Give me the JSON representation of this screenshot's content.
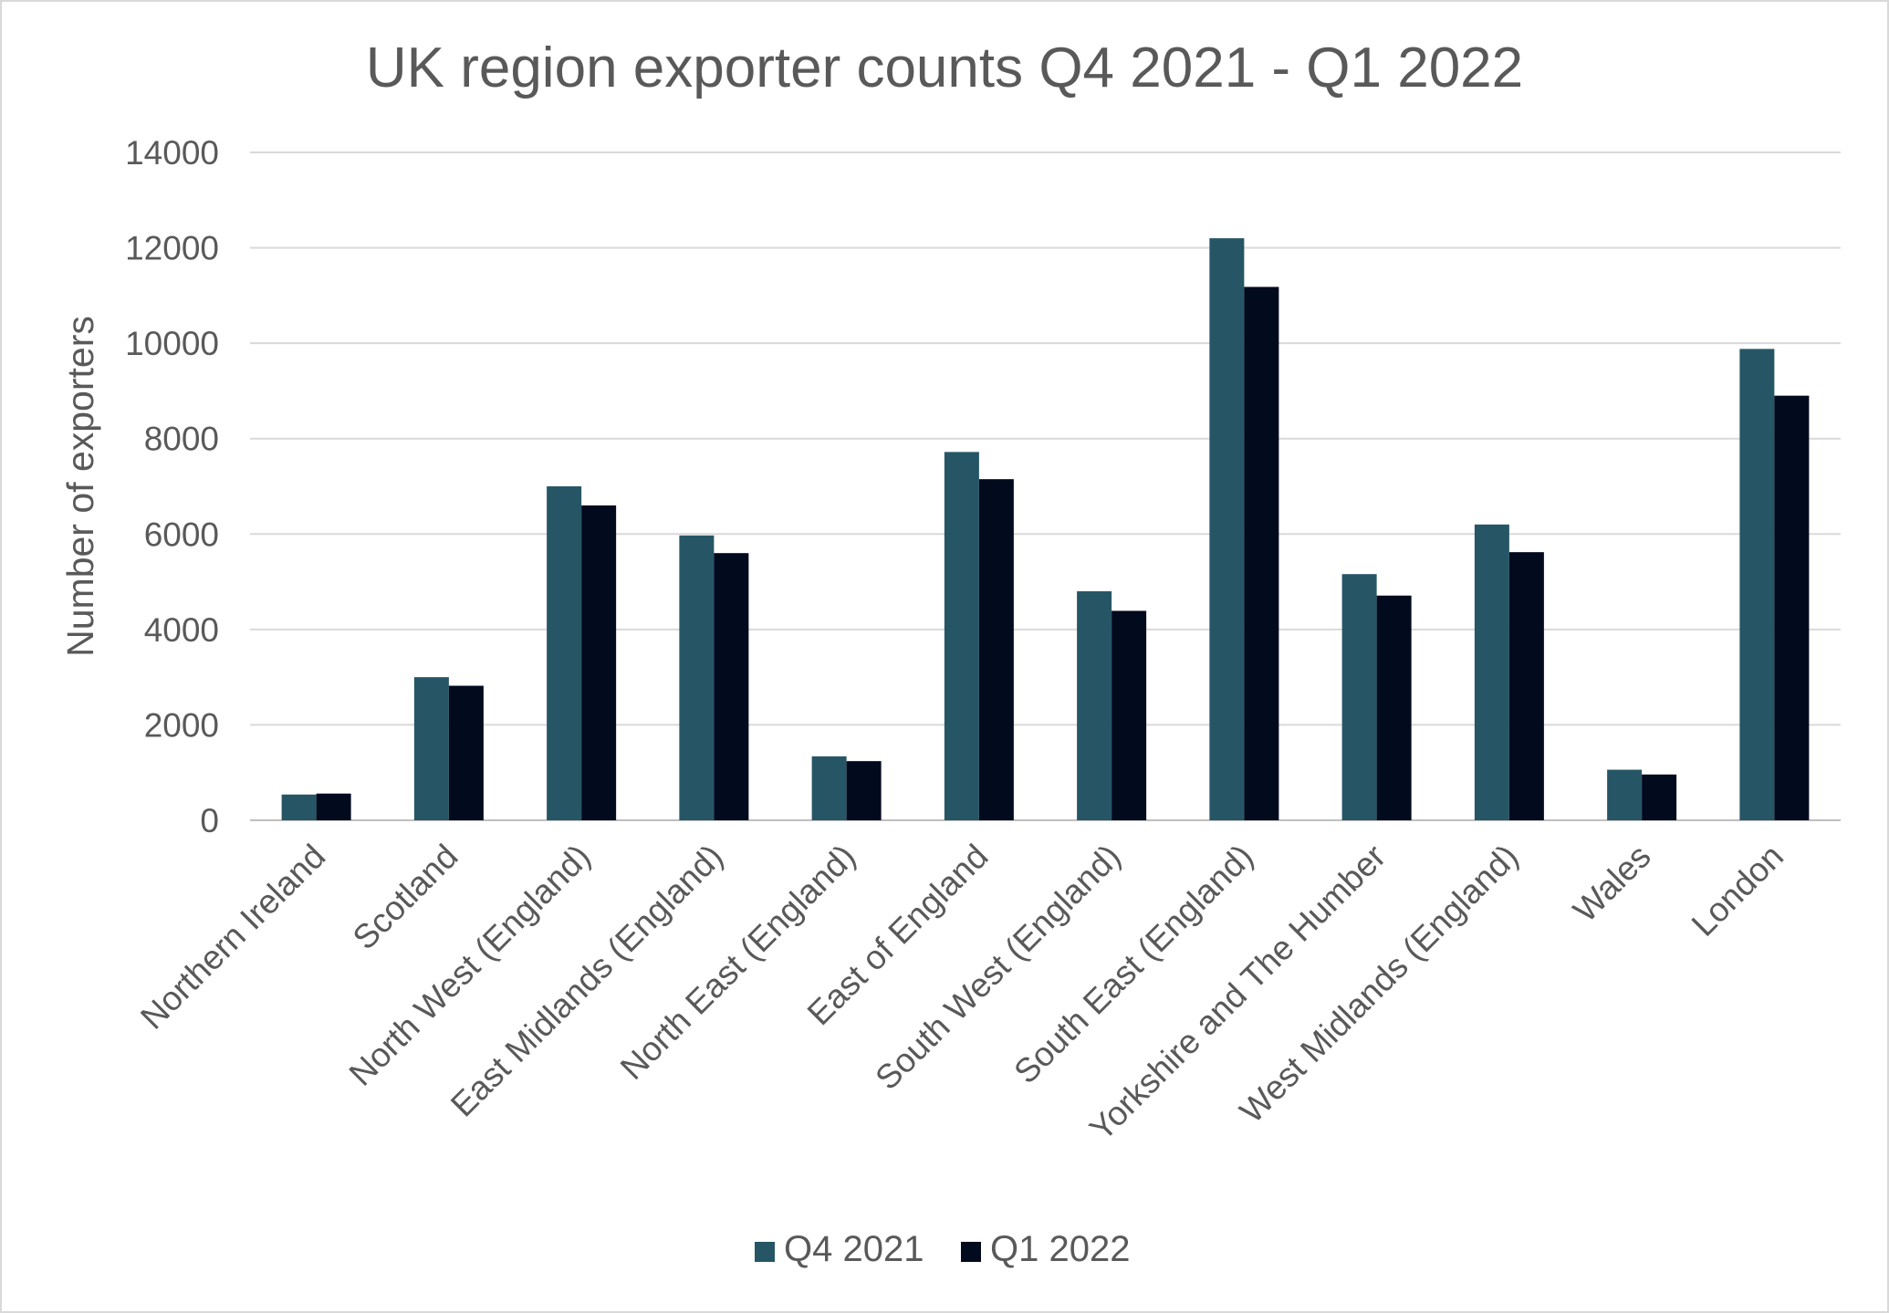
{
  "chart_data": {
    "type": "bar",
    "title": "UK region exporter counts Q4 2021 - Q1 2022",
    "xlabel": "",
    "ylabel": "Number of exporters",
    "ylim": [
      0,
      14000
    ],
    "yticks": [
      0,
      2000,
      4000,
      6000,
      8000,
      10000,
      12000,
      14000
    ],
    "grid": true,
    "legend_position": "bottom",
    "categories": [
      "Northern Ireland",
      "Scotland",
      "North West (England)",
      "East Midlands (England)",
      "North East (England)",
      "East of England",
      "South West (England)",
      "South East (England)",
      "Yorkshire and The Humber",
      "West Midlands (England)",
      "Wales",
      "London"
    ],
    "series": [
      {
        "name": "Q4 2021",
        "color": "#265665",
        "values": [
          540,
          3000,
          7000,
          5970,
          1340,
          7720,
          4800,
          12200,
          5160,
          6200,
          1060,
          9880
        ]
      },
      {
        "name": "Q1 2022",
        "color": "#020a1e",
        "values": [
          560,
          2820,
          6600,
          5600,
          1240,
          7150,
          4390,
          11180,
          4710,
          5620,
          960,
          8900
        ]
      }
    ]
  }
}
